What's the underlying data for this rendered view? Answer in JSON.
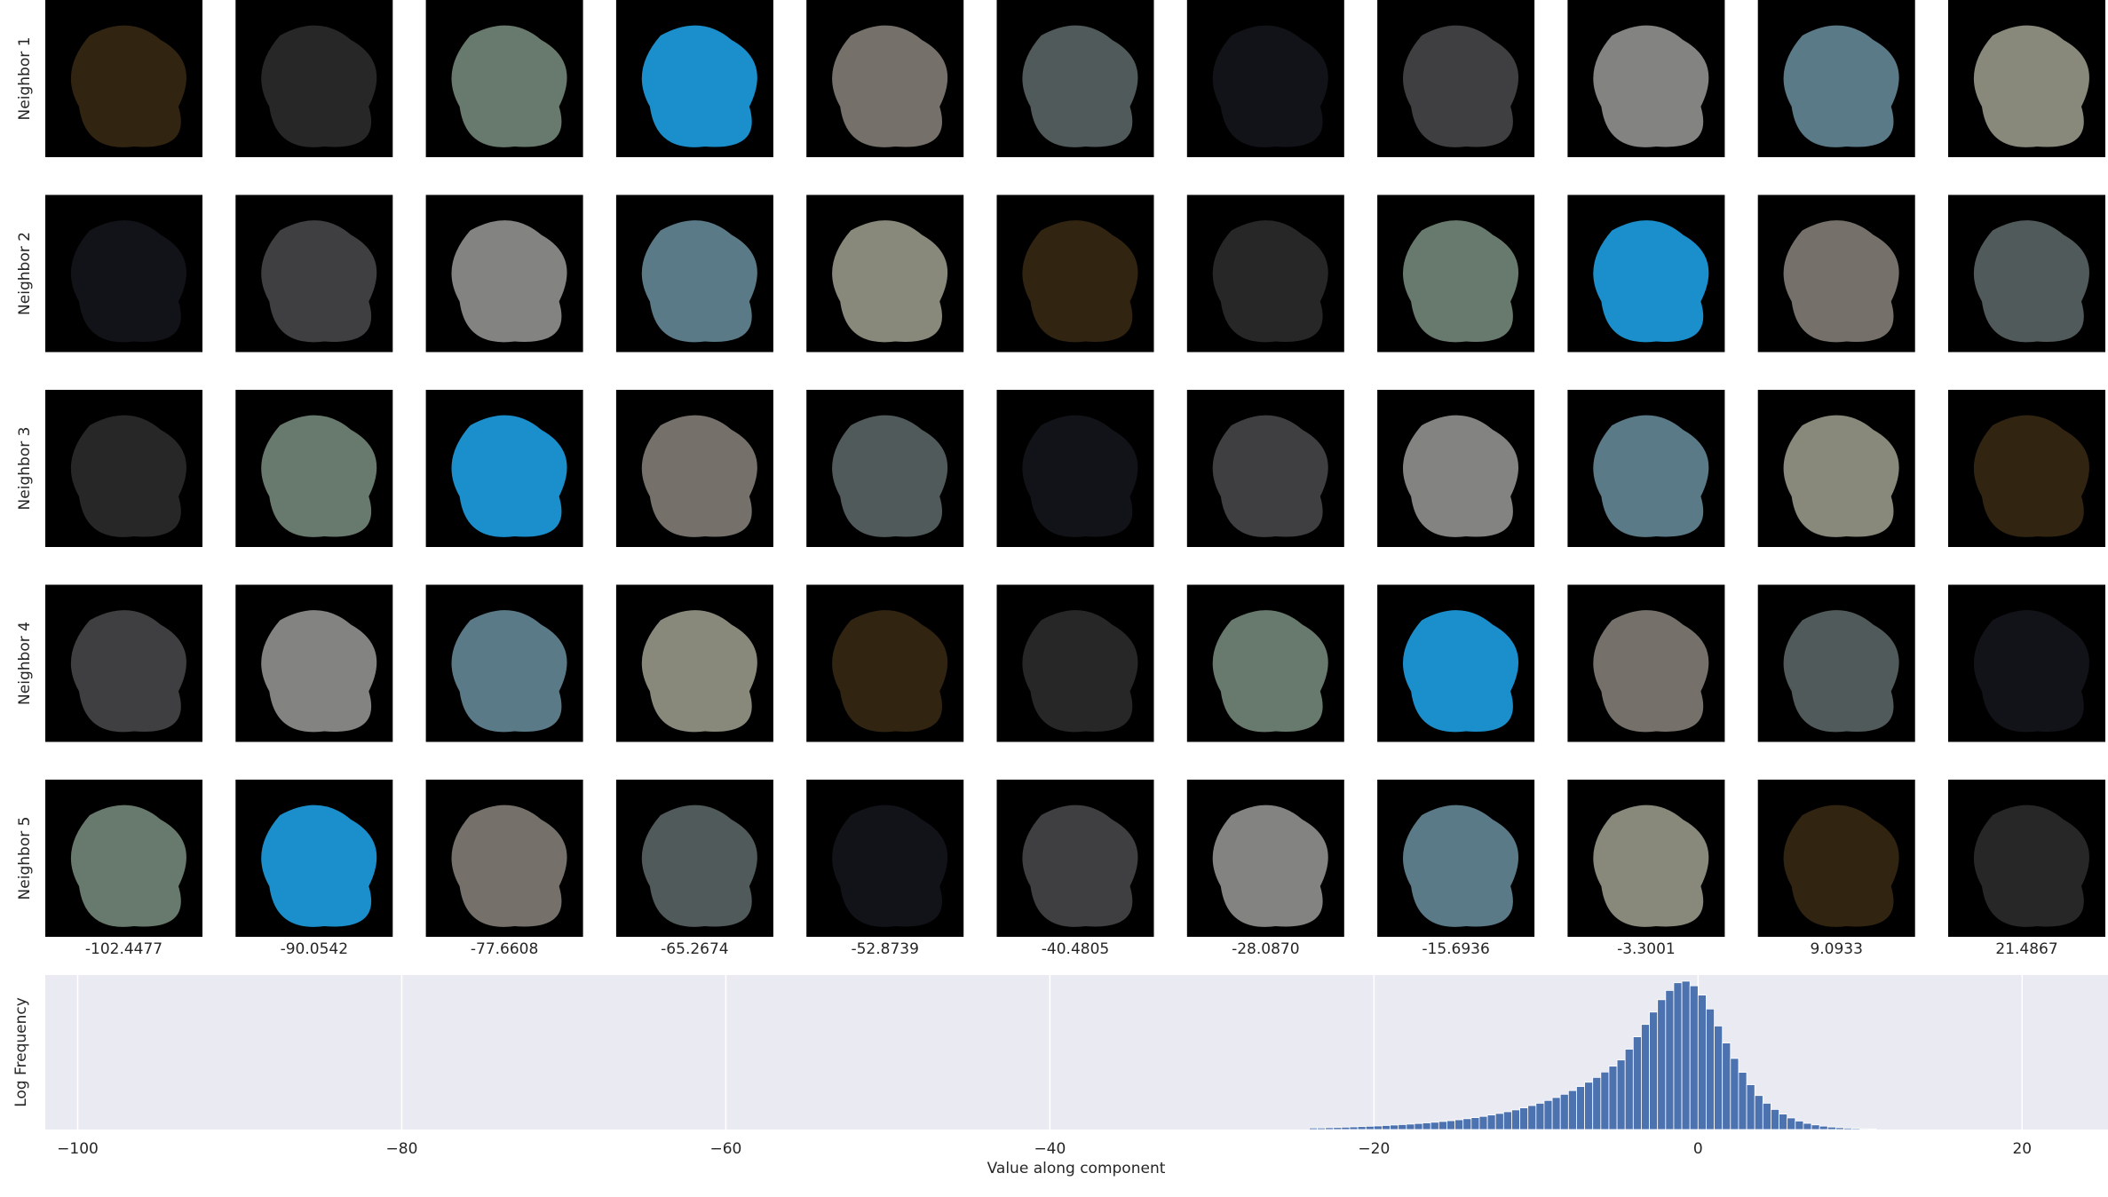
{
  "thumbnail_grid": {
    "row_labels": [
      "Neighbor 1",
      "Neighbor 2",
      "Neighbor 3",
      "Neighbor 4",
      "Neighbor 5"
    ],
    "column_labels": [
      "-102.4477",
      "-90.0542",
      "-77.6608",
      "-65.2674",
      "-52.8739",
      "-40.4805",
      "-28.0870",
      "-15.6936",
      "-3.3001",
      "9.0933",
      "21.4867"
    ]
  },
  "chart_data": {
    "type": "histogram",
    "x_label": "Value along component",
    "y_label": "Log Frequency",
    "color": "#4c72b0",
    "grid": true,
    "bins": [
      -24,
      -23.5,
      -23,
      -22.5,
      -22,
      -21.5,
      -21,
      -20.5,
      -20,
      -19.5,
      -19,
      -18.5,
      -18,
      -17.5,
      -17,
      -16.5,
      -16,
      -15.5,
      -15,
      -14.5,
      -14,
      -13.5,
      -13,
      -12.5,
      -12,
      -11.5,
      -11,
      -10.5,
      -10,
      -9.5,
      -9,
      -8.5,
      -8,
      -7.5,
      -7,
      -6.5,
      -6,
      -5.5,
      -5,
      -4.5,
      -4,
      -3.5,
      -3,
      -2.5,
      -2,
      -1.5,
      -1,
      -0.5,
      0,
      0.5,
      1,
      1.5,
      2,
      2.5,
      3,
      3.5,
      4,
      4.5,
      5,
      5.5,
      6,
      6.5,
      7,
      7.5,
      8,
      8.5,
      9,
      9.5,
      10,
      10.5,
      11
    ],
    "values": [
      0.01,
      0.01,
      0.012,
      0.013,
      0.015,
      0.017,
      0.019,
      0.021,
      0.023,
      0.026,
      0.029,
      0.032,
      0.035,
      0.039,
      0.043,
      0.047,
      0.052,
      0.057,
      0.063,
      0.07,
      0.077,
      0.085,
      0.094,
      0.104,
      0.115,
      0.127,
      0.14,
      0.155,
      0.17,
      0.188,
      0.207,
      0.228,
      0.252,
      0.278,
      0.306,
      0.337,
      0.372,
      0.41,
      0.45,
      0.52,
      0.6,
      0.68,
      0.76,
      0.84,
      0.9,
      0.95,
      0.96,
      0.93,
      0.87,
      0.78,
      0.67,
      0.56,
      0.46,
      0.37,
      0.29,
      0.22,
      0.17,
      0.13,
      0.1,
      0.075,
      0.055,
      0.04,
      0.03,
      0.022,
      0.016,
      0.012,
      0.009,
      0.007,
      0.005,
      0.004
    ],
    "xlim": [
      -102,
      25.3
    ],
    "ylim": [
      0,
      1
    ],
    "xticks": [
      {
        "value": -100,
        "label": "−100"
      },
      {
        "value": -80,
        "label": "−80"
      },
      {
        "value": -60,
        "label": "−60"
      },
      {
        "value": -40,
        "label": "−40"
      },
      {
        "value": -20,
        "label": "−20"
      },
      0,
      20
    ]
  }
}
